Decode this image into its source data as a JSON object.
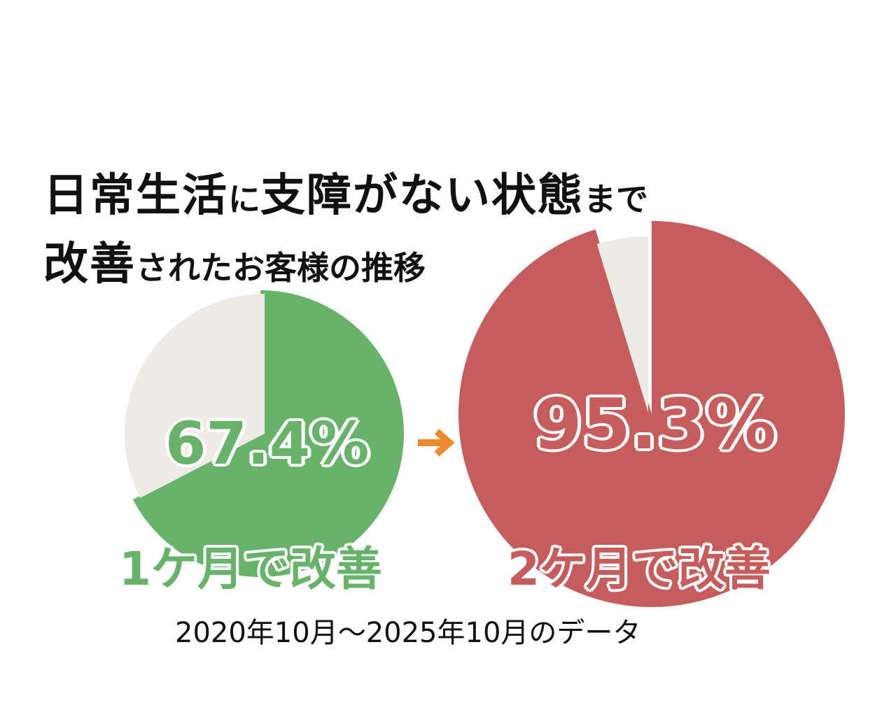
{
  "title": {
    "line1": [
      {
        "text": "日常生活",
        "size": "big"
      },
      {
        "text": "に",
        "size": "small"
      },
      {
        "text": "支障がない状態",
        "size": "big"
      },
      {
        "text": "まで",
        "size": "small"
      }
    ],
    "line2": [
      {
        "text": "改善",
        "size": "big"
      },
      {
        "text": "されたお客様の推移",
        "size": "small"
      }
    ]
  },
  "chart_data": [
    {
      "type": "pie",
      "slices": [
        {
          "label": "1ケ月で改善",
          "value": 67.4
        },
        {
          "label": "",
          "value": 32.6
        }
      ],
      "value_label": "67.4%",
      "caption": "1ケ月で改善",
      "colors": [
        "#68b36a",
        "#eeebe6"
      ]
    },
    {
      "type": "pie",
      "slices": [
        {
          "label": "2ケ月で改善",
          "value": 95.3
        },
        {
          "label": "",
          "value": 4.7
        }
      ],
      "value_label": "95.3%",
      "caption": "2ケ月で改善",
      "colors": [
        "#c65c5b",
        "#eeebe6"
      ]
    }
  ],
  "arrow_color": "#ee8a2e",
  "footer": "2020年10月～2025年10月のデータ"
}
